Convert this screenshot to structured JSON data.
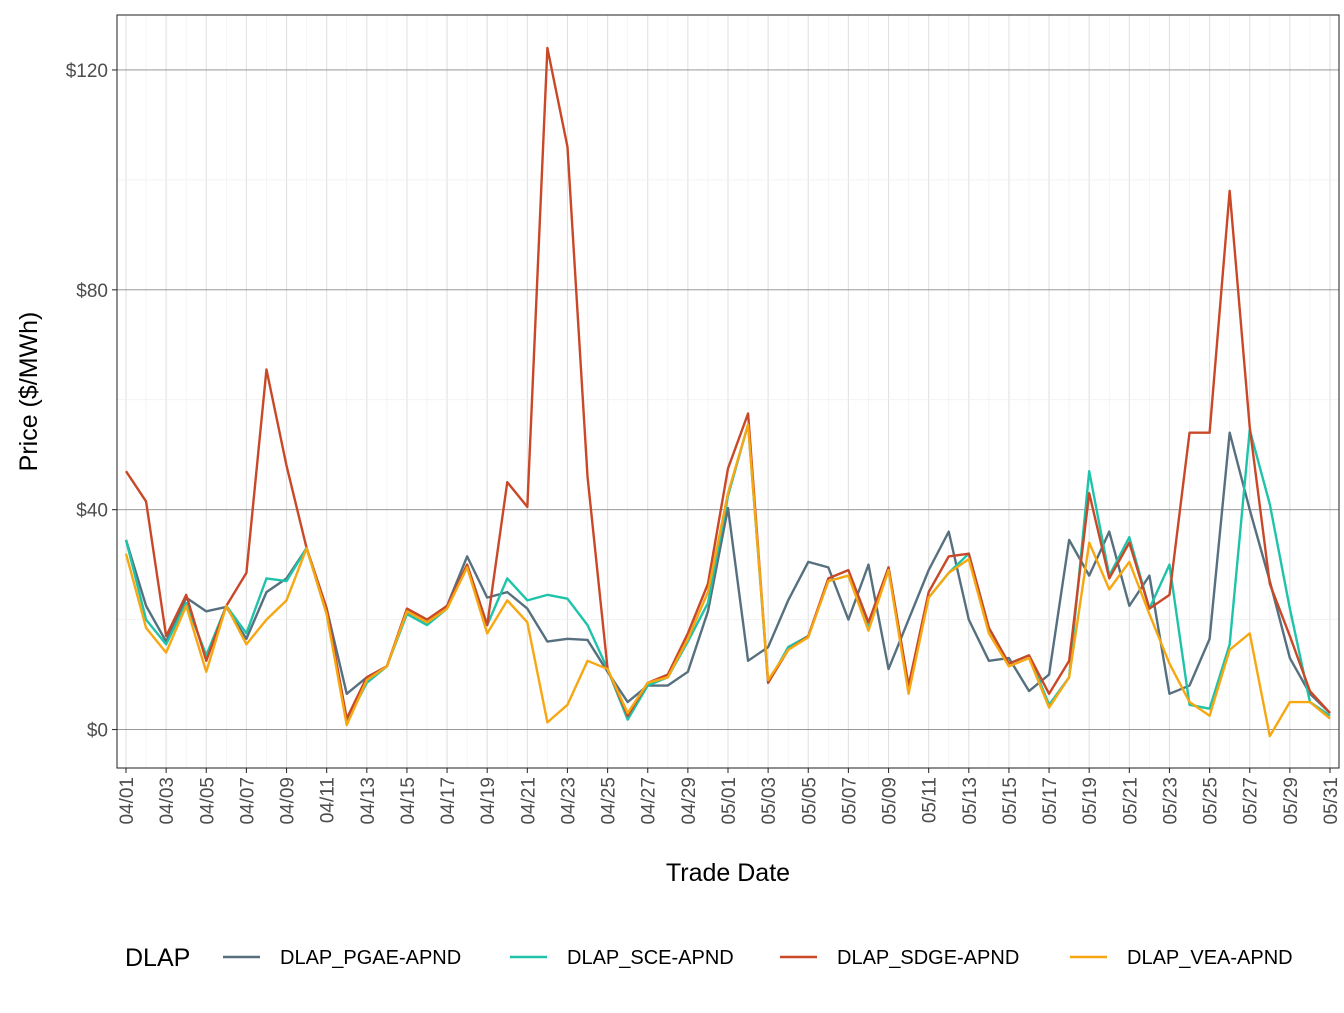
{
  "chart_data": {
    "type": "line",
    "title": "",
    "xlabel": "Trade Date",
    "ylabel": "Price ($/MWh)",
    "ylim": [
      -7,
      130
    ],
    "y_ticks": [
      0,
      40,
      80,
      120
    ],
    "y_tick_labels": [
      "$0",
      "$40",
      "$80",
      "$120"
    ],
    "grid": true,
    "legend_position": "bottom",
    "legend_title": "DLAP",
    "x": [
      "04/01",
      "04/02",
      "04/03",
      "04/04",
      "04/05",
      "04/06",
      "04/07",
      "04/08",
      "04/09",
      "04/10",
      "04/11",
      "04/12",
      "04/13",
      "04/14",
      "04/15",
      "04/16",
      "04/17",
      "04/18",
      "04/19",
      "04/20",
      "04/21",
      "04/22",
      "04/23",
      "04/24",
      "04/25",
      "04/26",
      "04/27",
      "04/28",
      "04/29",
      "04/30",
      "05/01",
      "05/02",
      "05/03",
      "05/04",
      "05/05",
      "05/06",
      "05/07",
      "05/08",
      "05/09",
      "05/10",
      "05/11",
      "05/12",
      "05/13",
      "05/14",
      "05/15",
      "05/16",
      "05/17",
      "05/18",
      "05/19",
      "05/20",
      "05/21",
      "05/22",
      "05/23",
      "05/24",
      "05/25",
      "05/26",
      "05/27",
      "05/28",
      "05/29",
      "05/30",
      "05/31"
    ],
    "x_tick_labels": [
      "04/01",
      "04/03",
      "04/05",
      "04/07",
      "04/09",
      "04/11",
      "04/13",
      "04/15",
      "04/17",
      "04/19",
      "04/21",
      "04/23",
      "04/25",
      "04/27",
      "04/29",
      "05/01",
      "05/03",
      "05/05",
      "05/07",
      "05/09",
      "05/11",
      "05/13",
      "05/15",
      "05/17",
      "05/19",
      "05/21",
      "05/23",
      "05/25",
      "05/27",
      "05/29",
      "05/31"
    ],
    "series": [
      {
        "name": "DLAP_PGAE-APND",
        "color": "#56707F",
        "values": [
          34.5,
          22.5,
          16.0,
          24.0,
          21.5,
          22.3,
          16.5,
          25.0,
          27.5,
          33.0,
          22.0,
          6.5,
          9.5,
          11.5,
          21.5,
          19.5,
          22.5,
          31.5,
          24.0,
          25.0,
          22.0,
          16.0,
          16.5,
          16.3,
          10.5,
          5.0,
          8.0,
          8.0,
          10.5,
          21.5,
          40.3,
          12.5,
          15.0,
          23.5,
          30.5,
          29.5,
          20.0,
          30.0,
          11.0,
          20.0,
          29.0,
          36.0,
          20.0,
          12.5,
          13.0,
          7.0,
          10.0,
          34.5,
          28.0,
          36.0,
          22.5,
          28.0,
          6.5,
          8.0,
          16.5,
          54.0,
          40.0,
          27.0,
          13.0,
          6.5,
          3.0
        ]
      },
      {
        "name": "DLAP_SCE-APND",
        "color": "#1FC3AA",
        "values": [
          34.5,
          20.0,
          15.5,
          23.0,
          13.5,
          22.5,
          17.5,
          27.5,
          27.0,
          33.0,
          21.0,
          1.5,
          8.5,
          11.5,
          21.0,
          19.0,
          22.0,
          30.0,
          19.0,
          27.5,
          23.5,
          24.5,
          23.8,
          19.0,
          11.0,
          1.8,
          8.0,
          9.5,
          16.0,
          23.0,
          42.5,
          55.5,
          8.5,
          15.0,
          17.0,
          27.0,
          28.0,
          18.5,
          29.5,
          7.5,
          24.0,
          28.5,
          32.0,
          18.5,
          12.0,
          13.5,
          4.5,
          9.5,
          47.0,
          28.0,
          35.0,
          22.0,
          30.0,
          4.5,
          3.8,
          15.5,
          54.5,
          41.0,
          22.0,
          5.0,
          2.5
        ]
      },
      {
        "name": "DLAP_SDGE-APND",
        "color": "#C94828",
        "values": [
          47.0,
          41.5,
          17.0,
          24.5,
          12.5,
          22.5,
          28.5,
          65.5,
          48.0,
          33.0,
          22.0,
          2.0,
          9.5,
          11.5,
          22.0,
          20.0,
          22.5,
          30.0,
          19.0,
          45.0,
          40.5,
          124.0,
          106.0,
          46.0,
          11.0,
          2.5,
          8.5,
          10.0,
          17.5,
          26.5,
          47.5,
          57.5,
          8.5,
          14.5,
          17.0,
          27.5,
          29.0,
          19.5,
          29.5,
          8.0,
          25.0,
          31.5,
          32.0,
          18.5,
          12.0,
          13.5,
          6.5,
          12.5,
          43.0,
          27.5,
          34.0,
          22.0,
          24.5,
          54.0,
          54.0,
          98.0,
          55.0,
          26.5,
          17.0,
          7.0,
          3.0
        ]
      },
      {
        "name": "DLAP_VEA-APND",
        "color": "#F7A712",
        "values": [
          32.0,
          18.5,
          14.0,
          22.5,
          10.5,
          22.5,
          15.5,
          20.0,
          23.5,
          33.0,
          21.0,
          0.8,
          9.0,
          11.5,
          21.5,
          19.5,
          22.0,
          29.5,
          17.5,
          23.5,
          19.5,
          1.3,
          4.5,
          12.5,
          11.0,
          3.0,
          8.5,
          9.5,
          16.5,
          25.0,
          43.0,
          55.5,
          9.0,
          14.5,
          16.8,
          27.0,
          28.0,
          18.0,
          29.0,
          6.5,
          24.0,
          28.5,
          31.0,
          17.5,
          11.5,
          13.0,
          4.0,
          9.5,
          34.0,
          25.5,
          30.5,
          21.0,
          12.0,
          5.0,
          2.5,
          14.5,
          17.5,
          -1.2,
          5.0,
          5.0,
          2.0
        ]
      }
    ]
  }
}
